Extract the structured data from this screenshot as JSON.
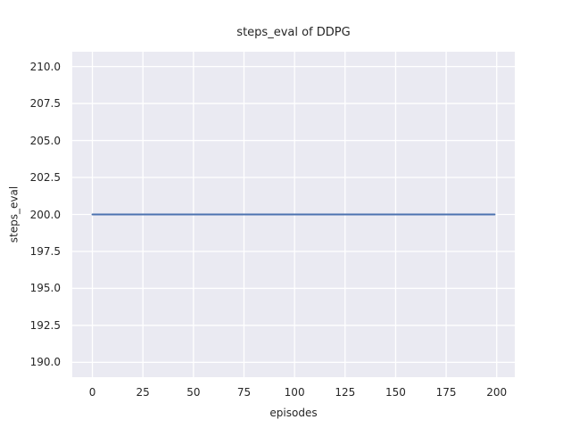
{
  "chart_data": {
    "type": "line",
    "title": "steps_eval of DDPG",
    "xlabel": "episodes",
    "ylabel": "steps_eval",
    "series": [
      {
        "name": "steps_eval",
        "x": [
          0,
          199
        ],
        "y": [
          200,
          200
        ],
        "color": "#4C72B0",
        "linewidth": 2
      }
    ],
    "xlim": [
      -9.95,
      208.95
    ],
    "ylim": [
      189,
      211
    ],
    "xticks": [
      0,
      25,
      50,
      75,
      100,
      125,
      150,
      175,
      200
    ],
    "yticks": [
      190.0,
      192.5,
      195.0,
      197.5,
      200.0,
      202.5,
      205.0,
      207.5,
      210.0
    ],
    "xtick_labels": [
      "0",
      "25",
      "50",
      "75",
      "100",
      "125",
      "150",
      "175",
      "200"
    ],
    "ytick_labels": [
      "190.0",
      "192.5",
      "195.0",
      "197.5",
      "200.0",
      "202.5",
      "205.0",
      "207.5",
      "210.0"
    ],
    "grid": true,
    "legend": false,
    "styles": {
      "axes_background": "#EAEAF2",
      "grid_color": "#FFFFFF",
      "figure_background": "#FFFFFF",
      "text_color": "#262626"
    }
  }
}
